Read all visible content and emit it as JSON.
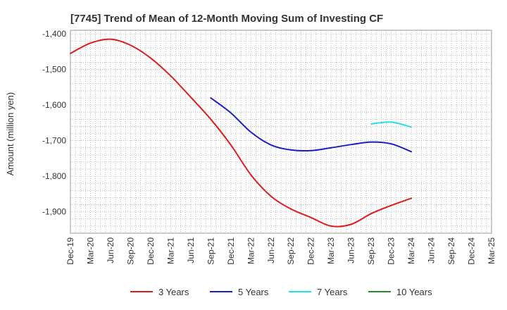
{
  "chart_data": {
    "type": "line",
    "title": "[7745]  Trend of Mean of 12-Month Moving Sum of Investing CF",
    "xlabel": "",
    "ylabel": "Amount (million yen)",
    "ylim": [
      -1960,
      -1390
    ],
    "yticks": [
      -1400,
      -1500,
      -1600,
      -1700,
      -1800,
      -1900
    ],
    "ytick_labels": [
      "-1,400",
      "-1,500",
      "-1,600",
      "-1,700",
      "-1,800",
      "-1,900"
    ],
    "categories": [
      "Dec-19",
      "Mar-20",
      "Jun-20",
      "Sep-20",
      "Dec-20",
      "Mar-21",
      "Jun-21",
      "Sep-21",
      "Dec-21",
      "Mar-22",
      "Jun-22",
      "Sep-22",
      "Dec-22",
      "Mar-23",
      "Jun-23",
      "Sep-23",
      "Dec-23",
      "Mar-24",
      "Jun-24",
      "Sep-24",
      "Dec-24",
      "Mar-25"
    ],
    "grid": true,
    "legend_position": "bottom",
    "series": [
      {
        "name": "3 Years",
        "color": "#dd1c1c",
        "values": [
          -1455,
          -1426,
          -1415,
          -1432,
          -1468,
          -1518,
          -1578,
          -1640,
          -1712,
          -1796,
          -1856,
          -1892,
          -1916,
          -1940,
          -1935,
          -1905,
          -1882,
          -1862,
          null,
          null,
          null,
          null
        ]
      },
      {
        "name": "5 Years",
        "color": "#1c1cc8",
        "values": [
          null,
          null,
          null,
          null,
          null,
          null,
          null,
          -1580,
          -1622,
          -1676,
          -1712,
          -1726,
          -1728,
          -1720,
          -1711,
          -1704,
          -1709,
          -1731,
          null,
          null,
          null,
          null
        ]
      },
      {
        "name": "7 Years",
        "color": "#22e0e8",
        "values": [
          null,
          null,
          null,
          null,
          null,
          null,
          null,
          null,
          null,
          null,
          null,
          null,
          null,
          null,
          null,
          -1653,
          -1648,
          -1662,
          null,
          null,
          null,
          null
        ]
      },
      {
        "name": "10 Years",
        "color": "#2a8a2a",
        "values": [
          null,
          null,
          null,
          null,
          null,
          null,
          null,
          null,
          null,
          null,
          null,
          null,
          null,
          null,
          null,
          null,
          null,
          null,
          null,
          null,
          null,
          null
        ]
      }
    ]
  }
}
